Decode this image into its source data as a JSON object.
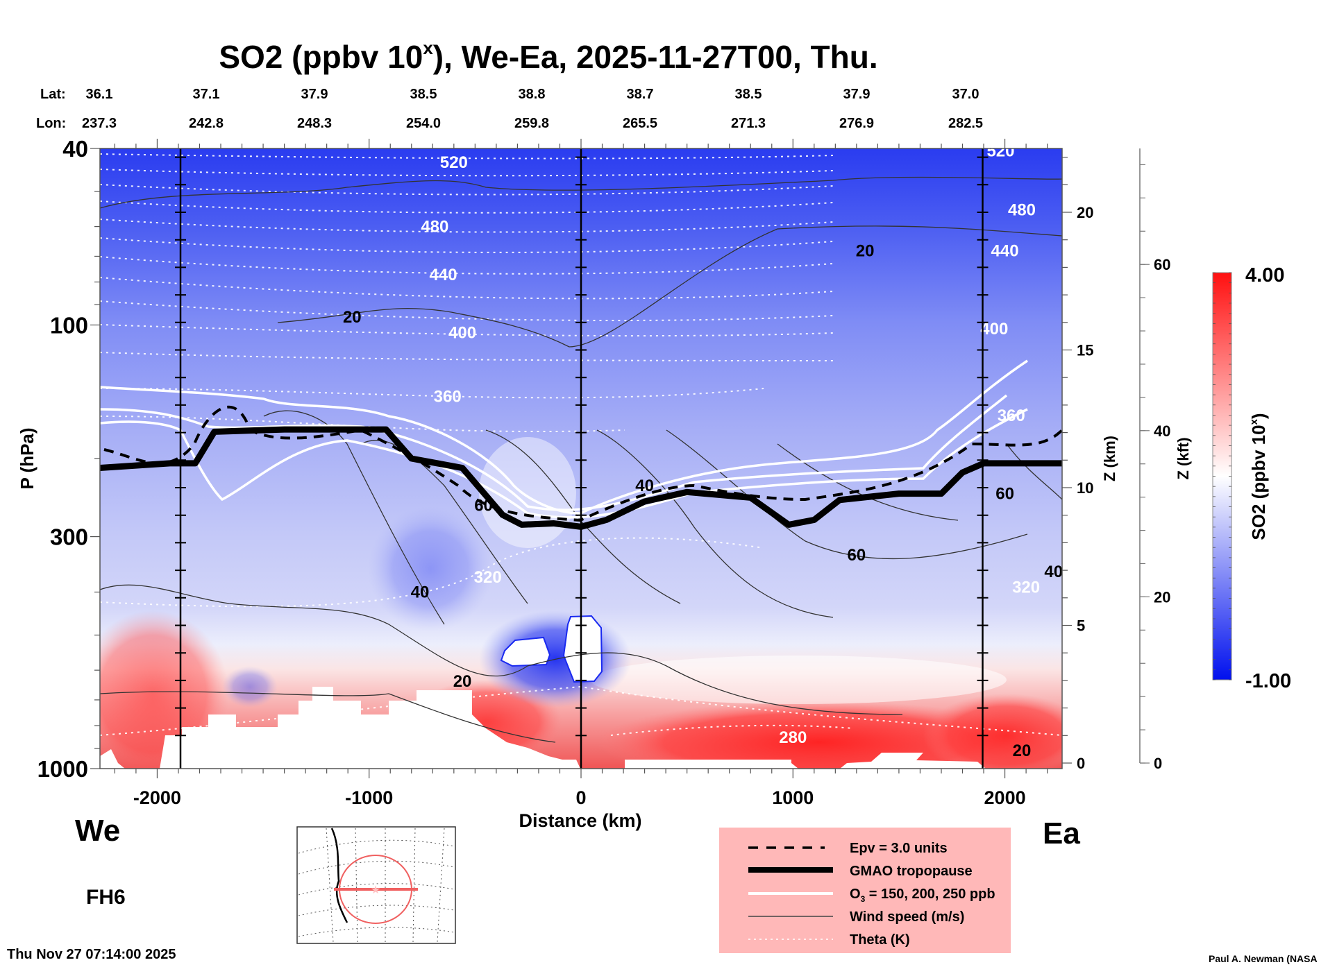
{
  "chart_data": {
    "type": "heatmap",
    "title": "SO2 (ppbv 10",
    "title_sup": "x",
    "title_suffix": "), We-Ea, 2025-11-27T00, Thu.",
    "xlabel": "Distance (km)",
    "ylabel": "P (hPa)",
    "y2label": "Z (km)",
    "y3label": "Z (kft)",
    "xlim": [
      -2270,
      2270
    ],
    "ylim": [
      1000,
      40
    ],
    "y_scale": "log",
    "x_ticks": [
      "-2000",
      "-1000",
      "0",
      "1000",
      "2000"
    ],
    "x_tick_values": [
      -2000,
      -1000,
      0,
      1000,
      2000
    ],
    "y_ticks": [
      "40",
      "100",
      "300",
      "1000"
    ],
    "y_tick_values": [
      40,
      100,
      300,
      1000
    ],
    "z_km_ticks": [
      "0",
      "5",
      "10",
      "15",
      "20"
    ],
    "z_km_values": [
      0,
      5,
      10,
      15,
      20
    ],
    "z_kft_ticks": [
      "0",
      "20",
      "40",
      "60"
    ],
    "z_kft_values": [
      0,
      20,
      40,
      60
    ],
    "lat_label": "Lat:",
    "lon_label": "Lon:",
    "lat": [
      "36.1",
      "37.1",
      "37.9",
      "38.5",
      "38.8",
      "38.7",
      "38.5",
      "37.9",
      "37.0"
    ],
    "lon": [
      "237.3",
      "242.8",
      "248.3",
      "254.0",
      "259.8",
      "265.5",
      "271.3",
      "276.9",
      "282.5"
    ],
    "reference_lines_km": [
      -1890,
      0,
      1895
    ],
    "colorbar": {
      "label": "SO2 (ppbv 10",
      "label_sup": "x",
      "label_suffix": ")",
      "min_label": "-1.00",
      "max_label": "4.00",
      "min": -1.0,
      "max": 4.0,
      "low_color": "#0010ee",
      "mid_color": "#ffffff",
      "high_color": "#ff1010"
    },
    "theta_labels": [
      {
        "text": "520",
        "x": -600,
        "p": 43
      },
      {
        "text": "480",
        "x": -690,
        "p": 60
      },
      {
        "text": "440",
        "x": -650,
        "p": 77
      },
      {
        "text": "400",
        "x": -560,
        "p": 104
      },
      {
        "text": "360",
        "x": -630,
        "p": 145
      },
      {
        "text": "320",
        "x": -440,
        "p": 370
      },
      {
        "text": "280",
        "x": 1000,
        "p": 850
      },
      {
        "text": "520",
        "x": 1980,
        "p": 40.5
      },
      {
        "text": "480",
        "x": 2080,
        "p": 55
      },
      {
        "text": "440",
        "x": 2000,
        "p": 68
      },
      {
        "text": "400",
        "x": 1950,
        "p": 102
      },
      {
        "text": "360",
        "x": 2030,
        "p": 160
      },
      {
        "text": "320",
        "x": 2100,
        "p": 390
      }
    ],
    "wind_labels": [
      {
        "text": "20",
        "x": -1080,
        "p": 96
      },
      {
        "text": "20",
        "x": 1340,
        "p": 68
      },
      {
        "text": "60",
        "x": -460,
        "p": 255
      },
      {
        "text": "60",
        "x": 1300,
        "p": 330
      },
      {
        "text": "40",
        "x": 300,
        "p": 230
      },
      {
        "text": "40",
        "x": -760,
        "p": 400
      },
      {
        "text": "40",
        "x": 2230,
        "p": 360
      },
      {
        "text": "20",
        "x": -560,
        "p": 635
      },
      {
        "text": "20",
        "x": 2080,
        "p": 910
      },
      {
        "text": "60",
        "x": 2000,
        "p": 240
      }
    ],
    "tropopause_hpa": [
      {
        "x": -2270,
        "p": 210
      },
      {
        "x": -1940,
        "p": 205
      },
      {
        "x": -1820,
        "p": 205
      },
      {
        "x": -1730,
        "p": 174
      },
      {
        "x": -1400,
        "p": 172
      },
      {
        "x": -920,
        "p": 172
      },
      {
        "x": -800,
        "p": 200
      },
      {
        "x": -560,
        "p": 210
      },
      {
        "x": -370,
        "p": 268
      },
      {
        "x": -280,
        "p": 282
      },
      {
        "x": -130,
        "p": 280
      },
      {
        "x": 0,
        "p": 285
      },
      {
        "x": 120,
        "p": 275
      },
      {
        "x": 300,
        "p": 250
      },
      {
        "x": 500,
        "p": 238
      },
      {
        "x": 800,
        "p": 245
      },
      {
        "x": 980,
        "p": 282
      },
      {
        "x": 1100,
        "p": 275
      },
      {
        "x": 1220,
        "p": 248
      },
      {
        "x": 1500,
        "p": 240
      },
      {
        "x": 1700,
        "p": 240
      },
      {
        "x": 1800,
        "p": 215
      },
      {
        "x": 1900,
        "p": 205
      },
      {
        "x": 2270,
        "p": 205
      }
    ]
  },
  "labels": {
    "west": "We",
    "east": "Ea",
    "forecast_hour": "FH6",
    "timestamp": "Thu Nov 27 07:14:00 2025",
    "credit": "Paul A. Newman (NASA"
  },
  "legend": {
    "placement": "bottom-center-right",
    "background": "#ffb8b8",
    "items": [
      {
        "label": "Epv = 3.0 units",
        "style": "dashed"
      },
      {
        "label": "GMAO tropopause",
        "style": "thick"
      },
      {
        "label_pre": "O",
        "label_sub": "3",
        "label_post": " = 150, 200, 250 ppb",
        "style": "white"
      },
      {
        "label": "Wind speed (m/s)",
        "style": "thin"
      },
      {
        "label": "Theta (K)",
        "style": "dotted"
      }
    ]
  }
}
